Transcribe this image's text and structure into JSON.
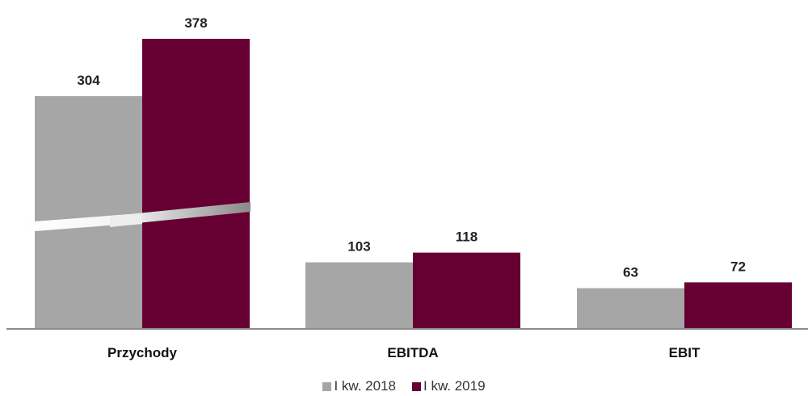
{
  "chart_data": {
    "type": "bar",
    "categories": [
      "Przychody",
      "EBITDA",
      "EBIT"
    ],
    "series": [
      {
        "name": "I kw. 2018",
        "color": "#a6a6a6",
        "values": [
          304,
          103,
          63
        ]
      },
      {
        "name": "I kw. 2019",
        "color": "#660033",
        "values": [
          378,
          118,
          72
        ]
      }
    ],
    "axis_break": {
      "category": "Przychody"
    },
    "legend_position": "bottom",
    "grid": false
  }
}
